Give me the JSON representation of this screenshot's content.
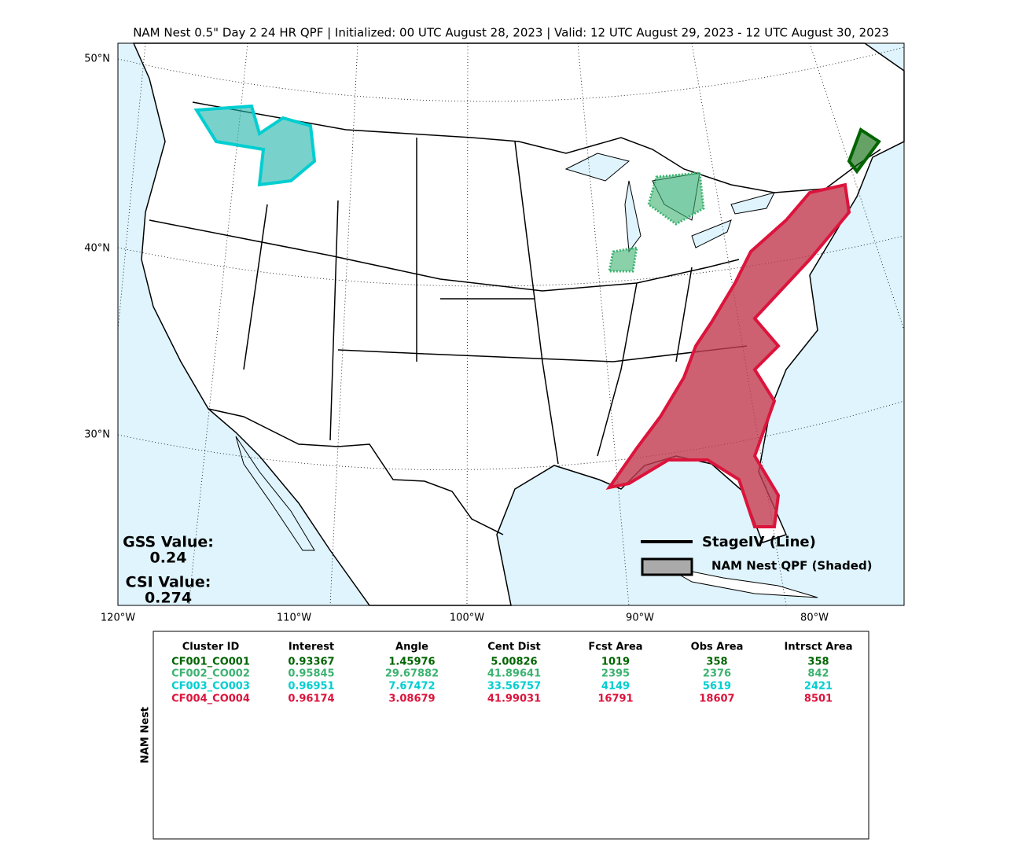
{
  "title": "NAM Nest 0.5\" Day 2 24 HR QPF | Initialized: 00 UTC August 28, 2023 | Valid: 12 UTC August 29, 2023 - 12 UTC August 30, 2023",
  "map": {
    "lat_labels": [
      "50°N",
      "40°N",
      "30°N"
    ],
    "lon_labels": [
      "120°W",
      "110°W",
      "100°W",
      "90°W",
      "80°W"
    ],
    "gss_label": "GSS Value:",
    "gss_value": "0.24",
    "csi_label": "CSI Value:",
    "csi_value": "0.274",
    "legend": [
      "StageIV (Line)",
      "NAM Nest QPF (Shaded)"
    ]
  },
  "table": {
    "ylabel": "NAM Nest",
    "columns": [
      "Cluster ID",
      "Interest",
      "Angle",
      "Cent Dist",
      "Fcst Area",
      "Obs Area",
      "Intrsct Area"
    ],
    "row_colors": [
      "#006400",
      "#3cb371",
      "#00ced1",
      "#dc143c"
    ],
    "rows": [
      [
        "CF001_CO001",
        "0.93367",
        "1.45976",
        "5.00826",
        "1019",
        "358",
        "358"
      ],
      [
        "CF002_CO002",
        "0.95845",
        "29.67882",
        "41.89641",
        "2395",
        "2376",
        "842"
      ],
      [
        "CF003_CO003",
        "0.96951",
        "7.67472",
        "33.56757",
        "4149",
        "5619",
        "2421"
      ],
      [
        "CF004_CO004",
        "0.96174",
        "3.08679",
        "41.99031",
        "16791",
        "18607",
        "8501"
      ]
    ]
  }
}
